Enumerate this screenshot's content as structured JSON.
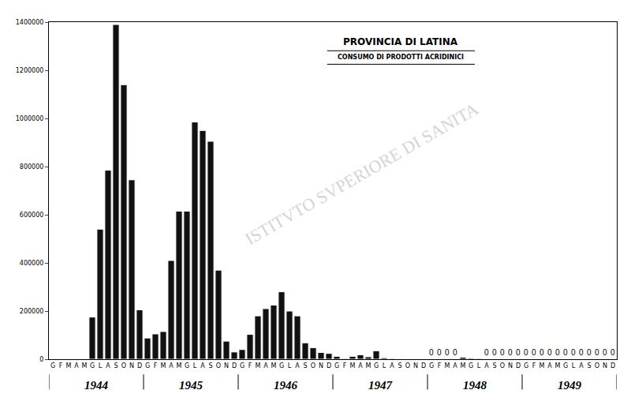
{
  "chart_data": {
    "type": "bar",
    "title": "PROVINCIA DI LATINA",
    "subtitle": "CONSUMO DI PRODOTTI ACRIDINICI",
    "annotations": [
      {
        "text": "ISTITVTO SVPERIORE DI SANITA"
      }
    ],
    "groups": [
      "1944",
      "1945",
      "1946",
      "1947",
      "1948",
      "1949"
    ],
    "categories": [
      "G",
      "F",
      "M",
      "A",
      "M",
      "G",
      "L",
      "A",
      "S",
      "O",
      "N",
      "D",
      "G",
      "F",
      "M",
      "A",
      "M",
      "G",
      "L",
      "A",
      "S",
      "O",
      "N",
      "D",
      "G",
      "F",
      "M",
      "A",
      "M",
      "G",
      "L",
      "A",
      "S",
      "O",
      "N",
      "D",
      "G",
      "F",
      "M",
      "A",
      "M",
      "G",
      "L",
      "A",
      "S",
      "O",
      "N",
      "D",
      "G",
      "F",
      "M",
      "A",
      "M",
      "G",
      "L",
      "A",
      "S",
      "O",
      "N",
      "D",
      "G",
      "F",
      "M",
      "A",
      "M",
      "G",
      "L",
      "A",
      "S",
      "O",
      "N",
      "D"
    ],
    "values": [
      null,
      null,
      null,
      null,
      null,
      175000,
      540000,
      785000,
      1390000,
      1140000,
      745000,
      205000,
      88000,
      105000,
      115000,
      410000,
      615000,
      615000,
      985000,
      950000,
      905000,
      370000,
      75000,
      30000,
      40000,
      103000,
      180000,
      210000,
      225000,
      280000,
      200000,
      180000,
      68000,
      48000,
      28000,
      24000,
      12000,
      3000,
      12000,
      18000,
      10000,
      35000,
      6000,
      3000,
      1000,
      0,
      0,
      0,
      0,
      0,
      0,
      0,
      8000,
      4000,
      3000,
      0,
      0,
      0,
      0,
      0,
      0,
      0,
      0,
      0,
      0,
      0,
      0,
      0,
      0,
      0,
      0,
      0
    ],
    "value_labels": [
      null,
      null,
      null,
      null,
      null,
      null,
      null,
      null,
      null,
      null,
      null,
      null,
      null,
      null,
      null,
      null,
      null,
      null,
      null,
      null,
      null,
      null,
      null,
      null,
      null,
      null,
      null,
      null,
      null,
      null,
      null,
      null,
      null,
      null,
      null,
      null,
      null,
      null,
      null,
      null,
      null,
      null,
      null,
      null,
      null,
      null,
      null,
      null,
      "0",
      "0",
      "0",
      "0",
      null,
      null,
      null,
      "0",
      "0",
      "0",
      "0",
      "0",
      "0",
      "0",
      "0",
      "0",
      "0",
      "0",
      "0",
      "0",
      "0",
      "0",
      "0",
      "0"
    ],
    "color": "#111111",
    "ylim": [
      0,
      1400000
    ],
    "yticks": [
      0,
      200000,
      400000,
      600000,
      800000,
      1000000,
      1200000,
      1400000
    ],
    "grid": false
  }
}
